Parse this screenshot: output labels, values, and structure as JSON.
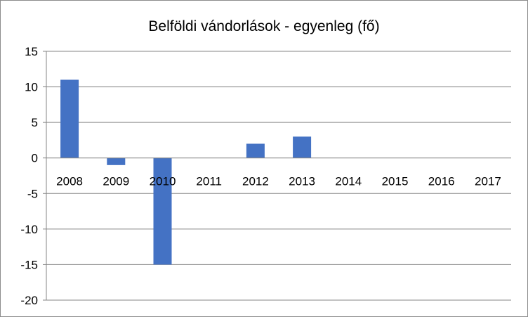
{
  "chart_data": {
    "type": "bar",
    "title": "Belföldi vándorlások  - egyenleg (fő)",
    "xlabel": "",
    "ylabel": "",
    "categories": [
      "2008",
      "2009",
      "2010",
      "2011",
      "2012",
      "2013",
      "2014",
      "2015",
      "2016",
      "2017"
    ],
    "series": [
      {
        "values": [
          11,
          -1,
          -15,
          0,
          2,
          3,
          0,
          0,
          0,
          0
        ]
      }
    ],
    "ylim": [
      -20,
      15
    ],
    "yticks": [
      "15",
      "10",
      "5",
      "0",
      "-5",
      "-10",
      "-15",
      "-20"
    ],
    "grid": true,
    "legend": "none",
    "colors": {
      "bar": "#4472c4",
      "grid": "#868686",
      "axis": "#868686"
    }
  }
}
